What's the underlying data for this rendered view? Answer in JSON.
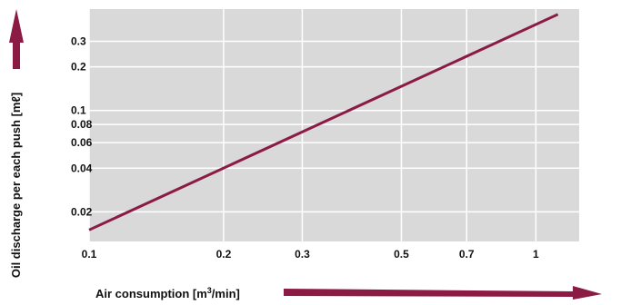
{
  "chart_data": {
    "type": "line",
    "title": "",
    "xlabel": "Air consumption [m3/min]",
    "xlabel_parts": {
      "before_sup": "Air consumption [m",
      "sup": "3",
      "after_sup": "/min]"
    },
    "ylabel": "Oil discharge per each push [mℓ]",
    "x_scale": "log",
    "y_scale": "log",
    "xlim": [
      0.1,
      1.25
    ],
    "ylim": [
      0.0125,
      0.5
    ],
    "x_ticks": [
      {
        "value": 0.1,
        "label": "0.1"
      },
      {
        "value": 0.2,
        "label": "0.2"
      },
      {
        "value": 0.3,
        "label": "0.3"
      },
      {
        "value": 0.5,
        "label": "0.5"
      },
      {
        "value": 0.7,
        "label": "0.7"
      },
      {
        "value": 1.0,
        "label": "1"
      }
    ],
    "y_ticks": [
      {
        "value": 0.02,
        "label": "0.02"
      },
      {
        "value": 0.04,
        "label": "0.04"
      },
      {
        "value": 0.06,
        "label": "0.06"
      },
      {
        "value": 0.08,
        "label": "0.08"
      },
      {
        "value": 0.1,
        "label": "0.1"
      },
      {
        "value": 0.2,
        "label": "0.2"
      },
      {
        "value": 0.3,
        "label": "0.3"
      }
    ],
    "grid": true,
    "series": [
      {
        "x": [
          0.1,
          1.12
        ],
        "y": [
          0.015,
          0.46
        ]
      }
    ],
    "colors": {
      "plot_background": "#d9d9d9",
      "grid": "#ffffff",
      "line": "#8b1a44",
      "arrow": "#8b1a44"
    }
  }
}
